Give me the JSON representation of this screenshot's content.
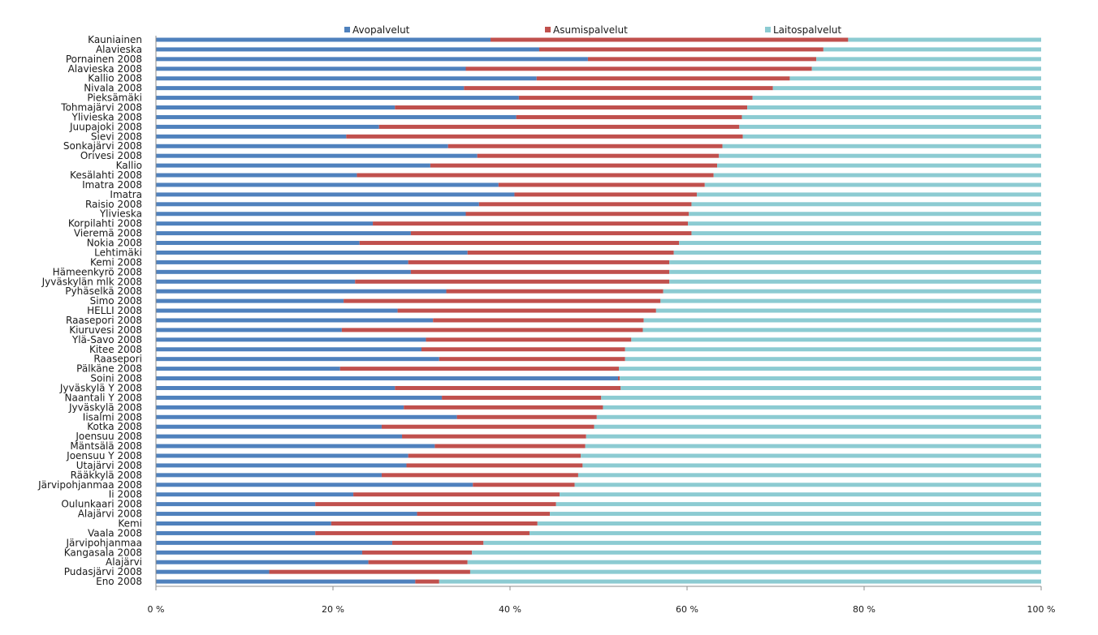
{
  "chart_data": {
    "type": "bar",
    "orientation": "horizontal",
    "stacked": "percent",
    "legend_position": "top",
    "grid": false,
    "xlim": [
      0,
      100
    ],
    "x_ticks": [
      "0 %",
      "20 %",
      "40 %",
      "60 %",
      "80 %",
      "100 %"
    ],
    "categories": [
      "Kauniainen",
      "Alavieska",
      "Pornainen 2008",
      "Alavieska 2008",
      "Kallio 2008",
      "Nivala 2008",
      "Pieksämäki",
      "Tohmajärvi 2008",
      "Ylivieska 2008",
      "Juupajoki 2008",
      "Sievi 2008",
      "Sonkajärvi 2008",
      "Orivesi 2008",
      "Kallio",
      "Kesälahti 2008",
      "Imatra 2008",
      "Imatra",
      "Raisio 2008",
      "Ylivieska",
      "Korpilahti 2008",
      "Vieremä 2008",
      "Nokia 2008",
      "Lehtimäki",
      "Kemi 2008",
      "Hämeenkyrö 2008",
      "Jyväskylän mlk 2008",
      "Pyhäselkä 2008",
      "Simo 2008",
      "HELLI 2008",
      "Raasepori 2008",
      "Kiuruvesi 2008",
      "Ylä-Savo 2008",
      "Kitee 2008",
      "Raasepori",
      "Pälkäne 2008",
      "Soini 2008",
      "Jyväskylä Y 2008",
      "Naantali Y 2008",
      "Jyväskylä 2008",
      "Iisalmi 2008",
      "Kotka 2008",
      "Joensuu 2008",
      "Mäntsälä 2008",
      "Joensuu Y 2008",
      "Utajärvi 2008",
      "Rääkkylä 2008",
      "Järvipohjanmaa 2008",
      "Ii 2008",
      "Oulunkaari 2008",
      "Alajärvi 2008",
      "Kemi",
      "Vaala 2008",
      "Järvipohjanmaa",
      "Kangasala 2008",
      "Alajärvi",
      "Pudasjärvi 2008",
      "Eno 2008"
    ],
    "series": [
      {
        "name": "Avopalvelut",
        "color": "#4f81bd",
        "values": [
          37.8,
          43.3,
          48.8,
          35.0,
          43.0,
          34.8,
          41.0,
          27.0,
          40.7,
          25.2,
          21.5,
          33.0,
          36.3,
          31.0,
          22.7,
          38.7,
          40.5,
          36.5,
          35.0,
          24.5,
          28.8,
          23.0,
          35.2,
          28.5,
          28.8,
          22.5,
          32.8,
          21.2,
          27.3,
          31.3,
          21.0,
          30.5,
          30.0,
          32.0,
          20.8,
          52.2,
          27.0,
          32.3,
          28.0,
          34.0,
          25.5,
          27.8,
          31.5,
          28.5,
          28.3,
          25.5,
          35.8,
          22.3,
          18.0,
          29.5,
          19.8,
          18.0,
          26.7,
          23.3,
          24.0,
          12.8,
          29.3
        ]
      },
      {
        "name": "Asumispalvelut",
        "color": "#c0504d",
        "values": [
          40.4,
          32.1,
          25.8,
          39.1,
          28.6,
          34.9,
          26.4,
          39.8,
          25.5,
          40.7,
          44.8,
          31.0,
          27.3,
          32.4,
          40.3,
          23.3,
          20.6,
          24.0,
          25.2,
          35.6,
          31.7,
          36.1,
          23.3,
          29.5,
          29.2,
          35.5,
          24.5,
          35.8,
          29.2,
          23.8,
          34.0,
          23.2,
          23.0,
          21.0,
          31.5,
          0.2,
          25.5,
          18.0,
          22.5,
          15.8,
          24.0,
          20.8,
          17.0,
          19.5,
          19.9,
          22.2,
          11.5,
          23.3,
          27.2,
          15.0,
          23.3,
          24.2,
          10.3,
          12.4,
          11.2,
          22.7,
          2.7
        ]
      },
      {
        "name": "Laitospalvelut",
        "color": "#8ccbd2",
        "values": [
          21.8,
          24.6,
          25.4,
          25.9,
          28.4,
          30.3,
          32.6,
          33.2,
          33.8,
          34.1,
          33.7,
          36.0,
          36.4,
          36.6,
          37.0,
          38.0,
          38.9,
          39.5,
          39.8,
          39.9,
          39.5,
          40.9,
          41.5,
          42.0,
          42.0,
          42.0,
          42.7,
          43.0,
          43.5,
          44.9,
          45.0,
          46.3,
          47.0,
          47.0,
          47.7,
          47.6,
          47.5,
          49.7,
          49.5,
          50.2,
          50.5,
          51.4,
          51.5,
          52.0,
          51.8,
          52.3,
          52.7,
          54.4,
          54.8,
          55.5,
          56.9,
          57.8,
          63.0,
          64.3,
          64.8,
          64.5,
          68.0
        ]
      }
    ]
  }
}
